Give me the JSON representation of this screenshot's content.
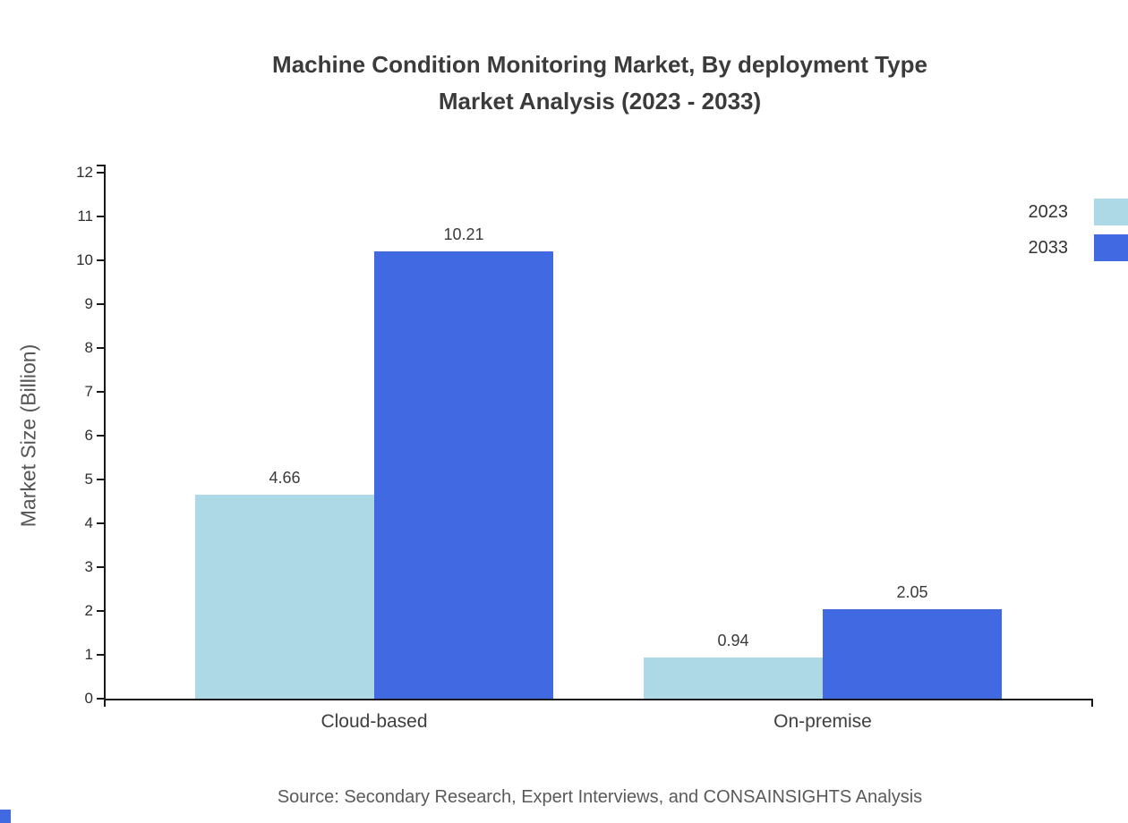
{
  "title": {
    "line1": "Machine Condition Monitoring Market, By deployment Type",
    "line2": "Market Analysis (2023 - 2033)"
  },
  "source": "Source: Secondary Research, Expert Interviews, and CONSAINSIGHTS Analysis",
  "chart_data": {
    "type": "bar",
    "categories": [
      "Cloud-based",
      "On-premise"
    ],
    "series": [
      {
        "name": "2023",
        "color": "#ADD8E6",
        "values": [
          4.66,
          0.94
        ]
      },
      {
        "name": "2033",
        "color": "#4169E1",
        "values": [
          10.21,
          2.05
        ]
      }
    ],
    "value_labels": [
      [
        "4.66",
        "0.94"
      ],
      [
        "10.21",
        "2.05"
      ]
    ],
    "title": "Machine Condition Monitoring Market, By deployment Type Market Analysis (2023 - 2033)",
    "xlabel": "",
    "ylabel": "Market Size (Billion)",
    "ylim": [
      0,
      12
    ],
    "ytick_step": 1,
    "grid": false,
    "legend_position": "top-right"
  }
}
